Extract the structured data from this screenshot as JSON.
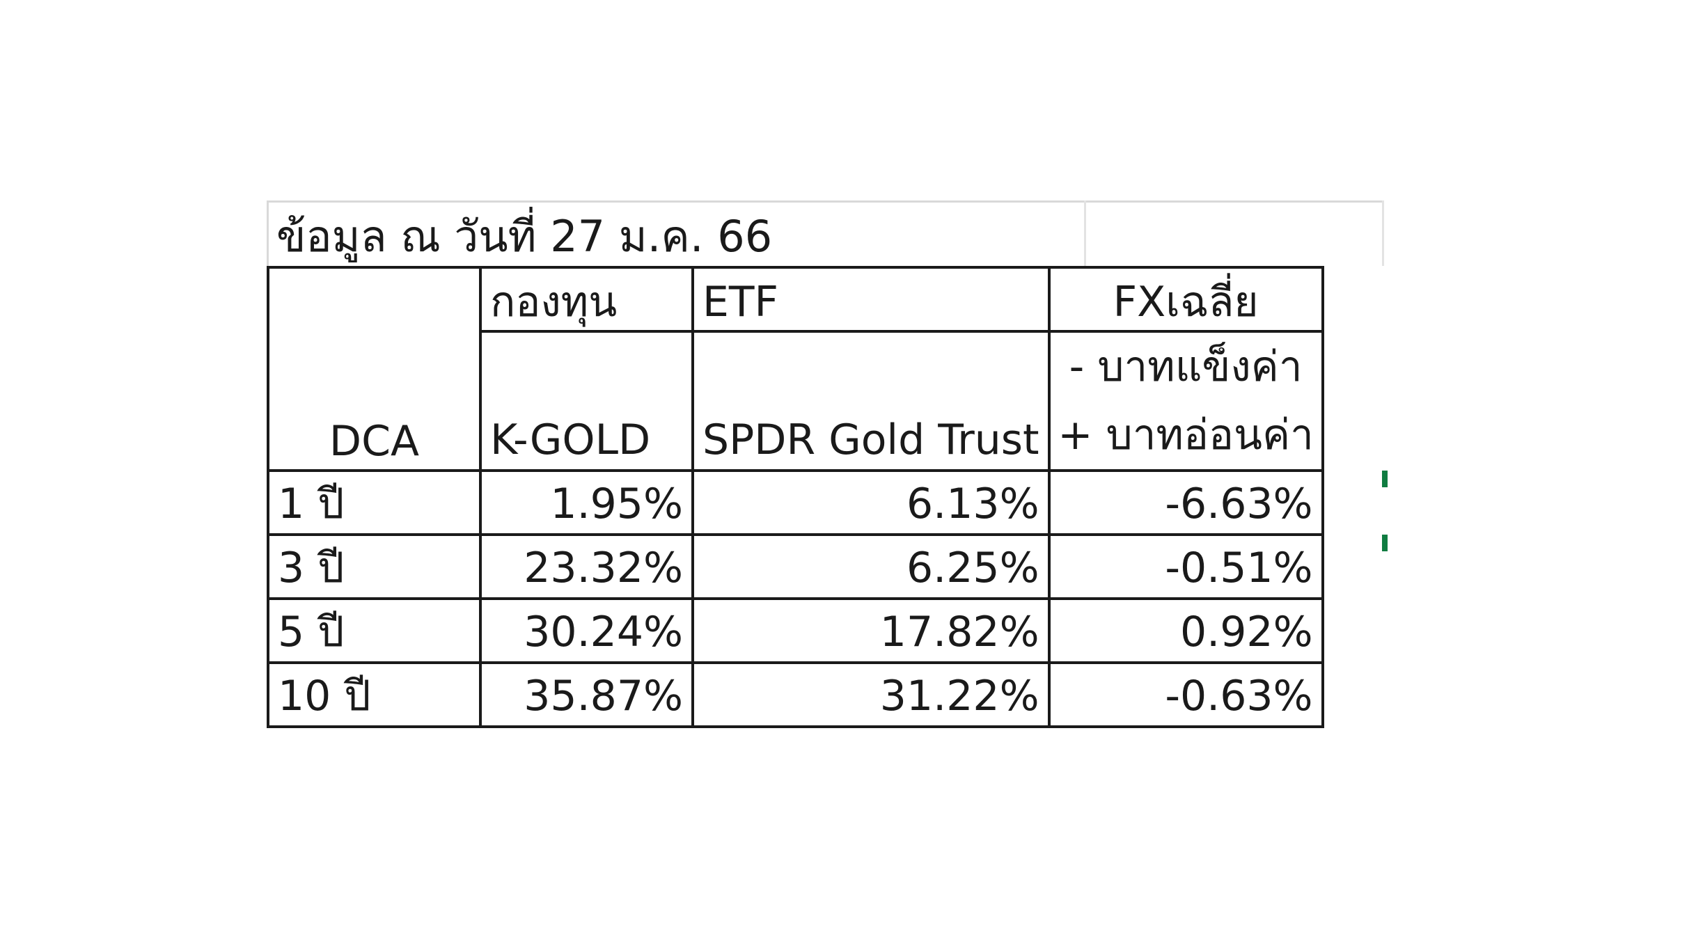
{
  "title": "ข้อมูล ณ วันที่ 27 ม.ค. 66",
  "table": {
    "corner_header": "DCA",
    "group_headers": [
      "กองทุน",
      "ETF",
      "FXเฉลี่ย"
    ],
    "sub_headers": [
      "K-GOLD",
      "SPDR Gold Trust"
    ],
    "fx_note": [
      "- บาทแข็งค่า",
      "+ บาทอ่อนค่า"
    ],
    "rows": [
      {
        "period": "1 ปี",
        "kgold": "1.95%",
        "spdr": "6.13%",
        "fx": "-6.63%"
      },
      {
        "period": "3 ปี",
        "kgold": "23.32%",
        "spdr": "6.25%",
        "fx": "-0.51%"
      },
      {
        "period": "5 ปี",
        "kgold": "30.24%",
        "spdr": "17.82%",
        "fx": "0.92%"
      },
      {
        "period": "10 ปี",
        "kgold": "35.87%",
        "spdr": "31.22%",
        "fx": "-0.63%"
      }
    ]
  },
  "colors": {
    "border": "#1a1a1a",
    "gridline": "#d9d9d9",
    "selection_marker": "#107c41"
  }
}
